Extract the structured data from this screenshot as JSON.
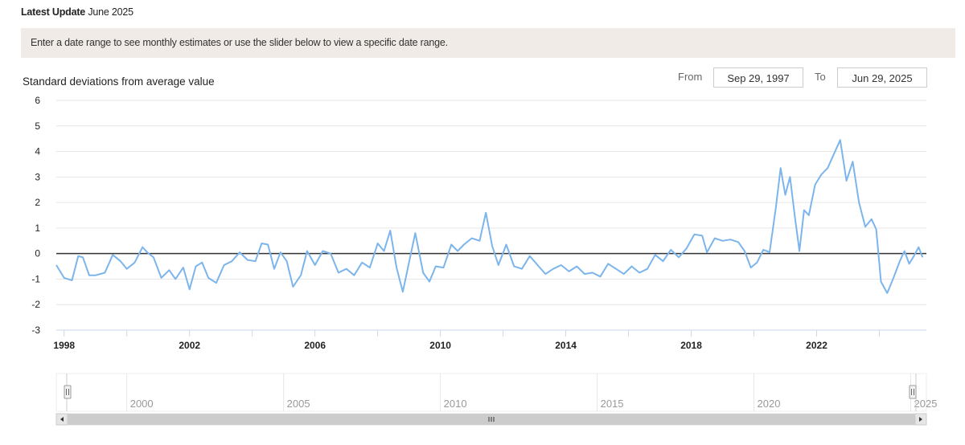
{
  "header": {
    "latest_label": "Latest Update",
    "latest_value": "June 2025"
  },
  "banner": {
    "text": "Enter a date range to see monthly estimates or use the slider below to view a specific date range."
  },
  "range": {
    "from_label": "From",
    "from_value": "Sep 29, 1997",
    "to_label": "To",
    "to_value": "Jun 29, 2025"
  },
  "chart_data": {
    "type": "line",
    "ylabel": "Standard deviations from average value",
    "ylim": [
      -3,
      6
    ],
    "yticks": [
      -3,
      -2,
      -1,
      0,
      1,
      2,
      3,
      4,
      5,
      6
    ],
    "xlim": [
      1997.75,
      2025.5
    ],
    "xticks": [
      "1998",
      "2002",
      "2006",
      "2010",
      "2014",
      "2018",
      "2022"
    ],
    "grid": "horizontal",
    "series_color": "#7cb5ec",
    "series": [
      {
        "points": [
          [
            1997.75,
            -0.45
          ],
          [
            1998.0,
            -0.95
          ],
          [
            1998.25,
            -1.05
          ],
          [
            1998.45,
            -0.1
          ],
          [
            1998.6,
            -0.15
          ],
          [
            1998.8,
            -0.85
          ],
          [
            1999.0,
            -0.85
          ],
          [
            1999.3,
            -0.75
          ],
          [
            1999.55,
            -0.05
          ],
          [
            1999.8,
            -0.3
          ],
          [
            2000.0,
            -0.6
          ],
          [
            2000.25,
            -0.35
          ],
          [
            2000.5,
            0.25
          ],
          [
            2000.65,
            0.05
          ],
          [
            2000.85,
            -0.15
          ],
          [
            2001.1,
            -0.95
          ],
          [
            2001.35,
            -0.65
          ],
          [
            2001.55,
            -1.0
          ],
          [
            2001.8,
            -0.55
          ],
          [
            2002.0,
            -1.4
          ],
          [
            2002.2,
            -0.5
          ],
          [
            2002.4,
            -0.35
          ],
          [
            2002.6,
            -0.95
          ],
          [
            2002.85,
            -1.15
          ],
          [
            2003.1,
            -0.45
          ],
          [
            2003.35,
            -0.3
          ],
          [
            2003.6,
            0.05
          ],
          [
            2003.85,
            -0.25
          ],
          [
            2004.1,
            -0.3
          ],
          [
            2004.3,
            0.4
          ],
          [
            2004.5,
            0.35
          ],
          [
            2004.7,
            -0.6
          ],
          [
            2004.9,
            0.05
          ],
          [
            2005.1,
            -0.3
          ],
          [
            2005.3,
            -1.3
          ],
          [
            2005.55,
            -0.85
          ],
          [
            2005.75,
            0.1
          ],
          [
            2006.0,
            -0.45
          ],
          [
            2006.25,
            0.1
          ],
          [
            2006.5,
            0.0
          ],
          [
            2006.75,
            -0.75
          ],
          [
            2007.0,
            -0.6
          ],
          [
            2007.25,
            -0.85
          ],
          [
            2007.5,
            -0.35
          ],
          [
            2007.75,
            -0.55
          ],
          [
            2008.0,
            0.4
          ],
          [
            2008.2,
            0.1
          ],
          [
            2008.4,
            0.9
          ],
          [
            2008.6,
            -0.55
          ],
          [
            2008.8,
            -1.5
          ],
          [
            2009.0,
            -0.35
          ],
          [
            2009.2,
            0.8
          ],
          [
            2009.45,
            -0.75
          ],
          [
            2009.65,
            -1.1
          ],
          [
            2009.85,
            -0.5
          ],
          [
            2010.1,
            -0.55
          ],
          [
            2010.35,
            0.35
          ],
          [
            2010.55,
            0.1
          ],
          [
            2010.75,
            0.35
          ],
          [
            2011.0,
            0.6
          ],
          [
            2011.25,
            0.5
          ],
          [
            2011.45,
            1.6
          ],
          [
            2011.65,
            0.3
          ],
          [
            2011.85,
            -0.45
          ],
          [
            2012.1,
            0.35
          ],
          [
            2012.35,
            -0.5
          ],
          [
            2012.6,
            -0.6
          ],
          [
            2012.85,
            -0.1
          ],
          [
            2013.1,
            -0.45
          ],
          [
            2013.35,
            -0.8
          ],
          [
            2013.6,
            -0.6
          ],
          [
            2013.85,
            -0.45
          ],
          [
            2014.1,
            -0.7
          ],
          [
            2014.35,
            -0.5
          ],
          [
            2014.6,
            -0.8
          ],
          [
            2014.85,
            -0.75
          ],
          [
            2015.1,
            -0.9
          ],
          [
            2015.35,
            -0.4
          ],
          [
            2015.6,
            -0.6
          ],
          [
            2015.85,
            -0.8
          ],
          [
            2016.1,
            -0.5
          ],
          [
            2016.35,
            -0.75
          ],
          [
            2016.6,
            -0.6
          ],
          [
            2016.85,
            -0.05
          ],
          [
            2017.1,
            -0.3
          ],
          [
            2017.35,
            0.15
          ],
          [
            2017.6,
            -0.15
          ],
          [
            2017.85,
            0.2
          ],
          [
            2018.1,
            0.75
          ],
          [
            2018.35,
            0.7
          ],
          [
            2018.5,
            0.05
          ],
          [
            2018.75,
            0.6
          ],
          [
            2019.0,
            0.5
          ],
          [
            2019.25,
            0.55
          ],
          [
            2019.5,
            0.45
          ],
          [
            2019.7,
            0.1
          ],
          [
            2019.9,
            -0.55
          ],
          [
            2020.1,
            -0.35
          ],
          [
            2020.3,
            0.15
          ],
          [
            2020.5,
            0.05
          ],
          [
            2020.7,
            1.8
          ],
          [
            2020.85,
            3.35
          ],
          [
            2021.0,
            2.3
          ],
          [
            2021.15,
            3.0
          ],
          [
            2021.3,
            1.5
          ],
          [
            2021.45,
            0.1
          ],
          [
            2021.6,
            1.7
          ],
          [
            2021.75,
            1.5
          ],
          [
            2021.95,
            2.7
          ],
          [
            2022.15,
            3.1
          ],
          [
            2022.35,
            3.35
          ],
          [
            2022.55,
            3.9
          ],
          [
            2022.75,
            4.45
          ],
          [
            2022.95,
            2.85
          ],
          [
            2023.15,
            3.6
          ],
          [
            2023.35,
            2.0
          ],
          [
            2023.55,
            1.05
          ],
          [
            2023.75,
            1.35
          ],
          [
            2023.9,
            0.95
          ],
          [
            2024.05,
            -1.1
          ],
          [
            2024.25,
            -1.55
          ],
          [
            2024.45,
            -0.95
          ],
          [
            2024.65,
            -0.3
          ],
          [
            2024.8,
            0.1
          ],
          [
            2024.95,
            -0.4
          ],
          [
            2025.1,
            -0.1
          ],
          [
            2025.25,
            0.25
          ],
          [
            2025.38,
            -0.15
          ]
        ]
      }
    ],
    "navigator_ticks": [
      "2000",
      "2005",
      "2010",
      "2015",
      "2020",
      "2025"
    ],
    "navigator_range": [
      1997.75,
      2025.5
    ]
  }
}
